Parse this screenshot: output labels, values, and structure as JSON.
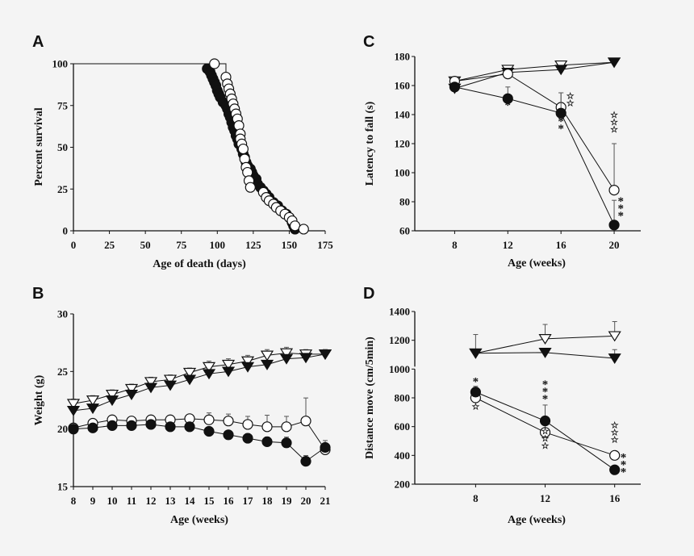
{
  "chart_data": [
    {
      "id": "A",
      "panel_label": "A",
      "type": "line",
      "subtype": "kaplan-meier",
      "xlabel": "Age of death (days)",
      "ylabel": "Percent survival",
      "xlim": [
        0,
        175
      ],
      "ylim": [
        0,
        100
      ],
      "xticks": [
        0,
        25,
        50,
        75,
        100,
        125,
        150,
        175
      ],
      "yticks": [
        0,
        25,
        50,
        75,
        100
      ],
      "grid": false,
      "series": [
        {
          "marker": "filled-circle",
          "points": [
            [
              93,
              97
            ],
            [
              95,
              95
            ],
            [
              96,
              93
            ],
            [
              97,
              91
            ],
            [
              98,
              89
            ],
            [
              99,
              87
            ],
            [
              100,
              84
            ],
            [
              101,
              82
            ],
            [
              102,
              80
            ],
            [
              104,
              77
            ],
            [
              106,
              75
            ],
            [
              107,
              73
            ],
            [
              108,
              70
            ],
            [
              109,
              68
            ],
            [
              110,
              65
            ],
            [
              111,
              62
            ],
            [
              112,
              60
            ],
            [
              113,
              57
            ],
            [
              114,
              55
            ],
            [
              115,
              52
            ],
            [
              117,
              49
            ],
            [
              118,
              46
            ],
            [
              119,
              44
            ],
            [
              120,
              41
            ],
            [
              121,
              39
            ],
            [
              123,
              37
            ],
            [
              124,
              35
            ],
            [
              125,
              33
            ],
            [
              127,
              31
            ],
            [
              128,
              28
            ],
            [
              130,
              26
            ],
            [
              132,
              24
            ],
            [
              134,
              22
            ],
            [
              136,
              20
            ],
            [
              139,
              17
            ],
            [
              142,
              15
            ],
            [
              145,
              12
            ],
            [
              148,
              10
            ],
            [
              150,
              8
            ],
            [
              152,
              5
            ],
            [
              153,
              3
            ],
            [
              154,
              1
            ]
          ]
        },
        {
          "marker": "open-circle",
          "points": [
            [
              98,
              100
            ],
            [
              106,
              92
            ],
            [
              107,
              88
            ],
            [
              108,
              85
            ],
            [
              109,
              82
            ],
            [
              110,
              79
            ],
            [
              111,
              76
            ],
            [
              112,
              73
            ],
            [
              113,
              70
            ],
            [
              114,
              67
            ],
            [
              115,
              63
            ],
            [
              116,
              58
            ],
            [
              116,
              55
            ],
            [
              117,
              52
            ],
            [
              118,
              49
            ],
            [
              119,
              43
            ],
            [
              120,
              38
            ],
            [
              121,
              35
            ],
            [
              122,
              30
            ],
            [
              123,
              26
            ],
            [
              132,
              23
            ],
            [
              134,
              20
            ],
            [
              136,
              18
            ],
            [
              139,
              16
            ],
            [
              141,
              14
            ],
            [
              144,
              12
            ],
            [
              147,
              10
            ],
            [
              150,
              8
            ],
            [
              152,
              6
            ],
            [
              154,
              3
            ],
            [
              160,
              1
            ]
          ]
        }
      ]
    },
    {
      "id": "B",
      "panel_label": "B",
      "type": "line",
      "xlabel": "Age (weeks)",
      "ylabel": "Weight (g)",
      "xlim": [
        8,
        21
      ],
      "ylim": [
        15,
        30
      ],
      "xticks": [
        8,
        9,
        10,
        11,
        12,
        13,
        14,
        15,
        16,
        17,
        18,
        19,
        20,
        21
      ],
      "yticks": [
        15,
        20,
        25,
        30
      ],
      "grid": false,
      "x": [
        8,
        9,
        10,
        11,
        12,
        13,
        14,
        15,
        16,
        17,
        18,
        19,
        20,
        21
      ],
      "series": [
        {
          "marker": "open-triangle-down",
          "values": [
            22.2,
            22.5,
            23.0,
            23.5,
            24.1,
            24.3,
            24.9,
            25.4,
            25.6,
            25.9,
            26.4,
            26.6,
            26.5,
            26.5
          ],
          "errors": [
            0.4,
            0.4,
            0.4,
            0.4,
            0.4,
            0.4,
            0.4,
            0.5,
            0.5,
            0.5,
            0.5,
            0.5,
            0.4,
            0.4
          ]
        },
        {
          "marker": "filled-triangle-down",
          "values": [
            21.6,
            21.8,
            22.5,
            23.0,
            23.6,
            23.8,
            24.3,
            24.8,
            25.0,
            25.4,
            25.6,
            26.1,
            26.2,
            26.5
          ],
          "errors": [
            0.3,
            0.3,
            0.3,
            0.3,
            0.3,
            0.3,
            0.3,
            0.3,
            0.3,
            0.3,
            0.3,
            0.3,
            0.3,
            0.4
          ]
        },
        {
          "marker": "open-circle",
          "values": [
            20.1,
            20.5,
            20.8,
            20.7,
            20.8,
            20.8,
            20.9,
            20.8,
            20.7,
            20.4,
            20.2,
            20.2,
            20.7,
            18.2
          ],
          "errors": [
            0.3,
            0.3,
            0.3,
            0.3,
            0.3,
            0.3,
            0.3,
            0.6,
            0.6,
            0.7,
            1.0,
            0.9,
            2.0,
            0.5
          ]
        },
        {
          "marker": "filled-circle",
          "values": [
            20.0,
            20.1,
            20.3,
            20.3,
            20.4,
            20.2,
            20.2,
            19.8,
            19.5,
            19.2,
            18.9,
            18.8,
            17.2,
            18.4
          ],
          "errors": [
            0.3,
            0.3,
            0.3,
            0.3,
            0.3,
            0.3,
            0.3,
            0.3,
            0.3,
            0.4,
            0.4,
            0.5,
            0.5,
            0.6
          ]
        }
      ]
    },
    {
      "id": "C",
      "panel_label": "C",
      "type": "line",
      "xlabel": "Age (weeks)",
      "ylabel": "Latency to fall (s)",
      "xlim": [
        5,
        22
      ],
      "ylim": [
        60,
        180
      ],
      "xticks": [
        8,
        12,
        16,
        20
      ],
      "yticks": [
        60,
        80,
        100,
        120,
        140,
        160,
        180
      ],
      "grid": false,
      "x": [
        8,
        12,
        16,
        20
      ],
      "series": [
        {
          "marker": "open-triangle-down",
          "values": [
            163,
            171,
            174,
            176
          ],
          "errors": [
            3,
            2,
            2,
            1
          ]
        },
        {
          "marker": "filled-triangle-down",
          "values": [
            158,
            169,
            171,
            176
          ],
          "errors": [
            2,
            2,
            2,
            1
          ]
        },
        {
          "marker": "open-circle",
          "values": [
            163,
            168,
            145,
            88
          ],
          "errors": [
            2,
            3,
            10,
            32
          ]
        },
        {
          "marker": "filled-circle",
          "values": [
            159,
            151,
            141,
            64
          ],
          "errors": [
            3,
            8,
            14,
            17
          ]
        }
      ],
      "annotations": [
        {
          "x": 12,
          "y": 146,
          "text": "*",
          "style": "filled"
        },
        {
          "x": 16,
          "y": 130,
          "text": "***",
          "style": "filled"
        },
        {
          "x": 16.7,
          "y": 148,
          "text": "☆☆",
          "style": "open"
        },
        {
          "x": 20,
          "y": 130,
          "text": "☆☆☆",
          "style": "open"
        },
        {
          "x": 20.5,
          "y": 70,
          "text": "***",
          "style": "filled"
        }
      ]
    },
    {
      "id": "D",
      "panel_label": "D",
      "type": "line",
      "xlabel": "Age (weeks)",
      "ylabel": "Distance move (cm/5min)",
      "xlim": [
        4.5,
        17.5
      ],
      "ylim": [
        200,
        1400
      ],
      "xticks": [
        8,
        12,
        16
      ],
      "yticks": [
        200,
        400,
        600,
        800,
        1000,
        1200,
        1400
      ],
      "axis_break_at": 1000,
      "grid": false,
      "x": [
        8,
        12,
        16
      ],
      "series": [
        {
          "marker": "open-triangle-down",
          "values": [
            1110,
            1210,
            1230
          ],
          "errors": [
            130,
            100,
            100
          ]
        },
        {
          "marker": "filled-triangle-down",
          "values": [
            1110,
            1115,
            1075
          ],
          "errors": [
            20,
            20,
            60
          ]
        },
        {
          "marker": "open-circle",
          "values": [
            800,
            560,
            400
          ],
          "errors": [
            30,
            60,
            20
          ]
        },
        {
          "marker": "filled-circle",
          "values": [
            840,
            640,
            300
          ],
          "errors": [
            40,
            110,
            20
          ]
        }
      ],
      "annotations": [
        {
          "x": 8,
          "y": 910,
          "text": "*",
          "style": "filled"
        },
        {
          "x": 8,
          "y": 740,
          "text": "☆",
          "style": "open"
        },
        {
          "x": 12,
          "y": 790,
          "text": "***",
          "style": "filled"
        },
        {
          "x": 12,
          "y": 470,
          "text": "☆☆☆",
          "style": "open"
        },
        {
          "x": 16,
          "y": 510,
          "text": "☆☆☆",
          "style": "open"
        },
        {
          "x": 16.5,
          "y": 280,
          "text": "***",
          "style": "filled"
        }
      ]
    }
  ]
}
